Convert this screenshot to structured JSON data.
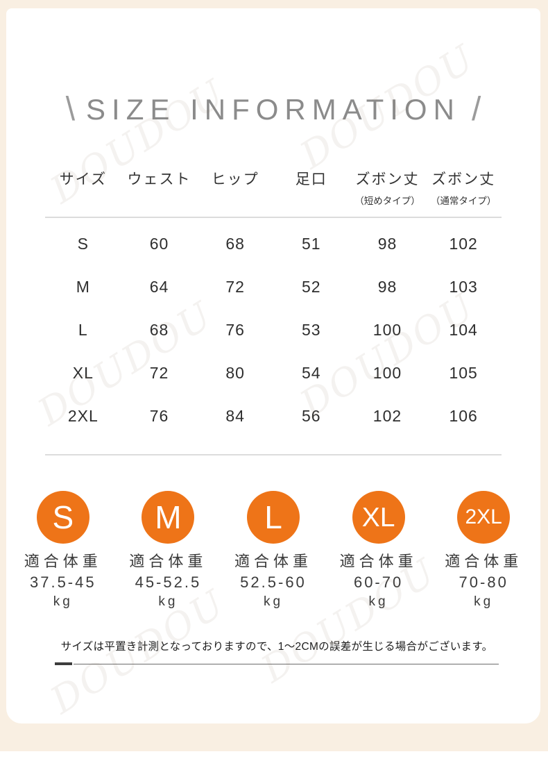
{
  "title": {
    "left_slash": "\\",
    "text": "SIZE INFORMATION",
    "right_slash": "/"
  },
  "watermark": "DOUDOU",
  "table": {
    "headers": [
      {
        "label": "サイズ",
        "sub": ""
      },
      {
        "label": "ウェスト",
        "sub": ""
      },
      {
        "label": "ヒップ",
        "sub": ""
      },
      {
        "label": "足口",
        "sub": ""
      },
      {
        "label": "ズボン丈",
        "sub": "（短めタイプ）"
      },
      {
        "label": "ズボン丈",
        "sub": "（通常タイプ）"
      }
    ],
    "rows": [
      [
        "S",
        "60",
        "68",
        "51",
        "98",
        "102"
      ],
      [
        "M",
        "64",
        "72",
        "52",
        "98",
        "103"
      ],
      [
        "L",
        "68",
        "76",
        "53",
        "100",
        "104"
      ],
      [
        "XL",
        "72",
        "80",
        "54",
        "100",
        "105"
      ],
      [
        "2XL",
        "76",
        "84",
        "56",
        "102",
        "106"
      ]
    ]
  },
  "weight_guide": [
    {
      "size": "S",
      "label": "適合体重",
      "range": "37.5-45",
      "unit": "kg"
    },
    {
      "size": "M",
      "label": "適合体重",
      "range": "45-52.5",
      "unit": "kg"
    },
    {
      "size": "L",
      "label": "適合体重",
      "range": "52.5-60",
      "unit": "kg"
    },
    {
      "size": "XL",
      "label": "適合体重",
      "range": "60-70",
      "unit": "kg"
    },
    {
      "size": "2XL",
      "label": "適合体重",
      "range": "70-80",
      "unit": "kg"
    }
  ],
  "note": "サイズは平置き計測となっておりますので、1〜2CMの誤差が生じる場合がございます。",
  "colors": {
    "accent_orange": "#ee7418",
    "frame_cream": "#f9efe2",
    "title_gray": "#8b8b8b",
    "text_dark": "#2e2e2e",
    "divider_gray": "#dcdcdc"
  },
  "chart_data": {
    "type": "table",
    "title": "SIZE INFORMATION",
    "columns": [
      "サイズ",
      "ウェスト",
      "ヒップ",
      "足口",
      "ズボン丈（短めタイプ）",
      "ズボン丈（通常タイプ）"
    ],
    "rows": [
      [
        "S",
        60,
        68,
        51,
        98,
        102
      ],
      [
        "M",
        64,
        72,
        52,
        98,
        103
      ],
      [
        "L",
        68,
        76,
        53,
        100,
        104
      ],
      [
        "XL",
        72,
        80,
        54,
        100,
        105
      ],
      [
        "2XL",
        76,
        84,
        56,
        102,
        106
      ]
    ],
    "suitable_weight_kg": {
      "S": [
        37.5,
        45
      ],
      "M": [
        45,
        52.5
      ],
      "L": [
        52.5,
        60
      ],
      "XL": [
        60,
        70
      ],
      "2XL": [
        70,
        80
      ]
    },
    "footnote": "サイズは平置き計測となっておりますので、1〜2CMの誤差が生じる場合がございます。"
  }
}
